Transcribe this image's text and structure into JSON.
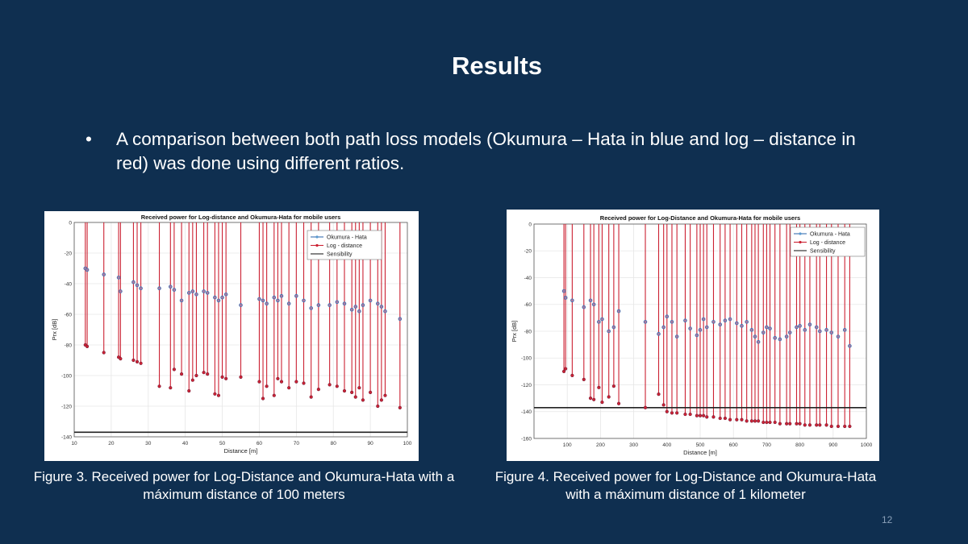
{
  "slide": {
    "title": "Results",
    "bullet": "A comparison between both path loss models (Okumura – Hata in blue and log – distance in red) was done using different ratios.",
    "bullet_symbol": "•",
    "page_number": "12",
    "background_color": "#0f2f50"
  },
  "figures": [
    {
      "caption": "Figure 3. Received power for Log-Distance and Okumura-Hata with a máximum  distance of 100 meters"
    },
    {
      "caption": "Figure 4. Received power for Log-Distance and Okumura-Hata  with a máximum  distance of 1 kilometer"
    }
  ],
  "chart_data": [
    {
      "type": "scatter",
      "title": "Received power for Log-distance and Okumura-Hata for mobile users",
      "xlabel": "Distance [m]",
      "ylabel": "Prx [dB]",
      "xlim": [
        10,
        100
      ],
      "ylim": [
        -140,
        0
      ],
      "xticks": [
        10,
        20,
        30,
        40,
        50,
        60,
        70,
        80,
        90,
        100
      ],
      "yticks": [
        0,
        -20,
        -40,
        -60,
        -80,
        -100,
        -120,
        -140
      ],
      "grid": true,
      "legend_position": "top-right",
      "colors": {
        "okumura": "#3a6fb0",
        "logdist": "#cc2233",
        "sens": "#222222"
      },
      "series": [
        {
          "name": "Okumura - Hata",
          "x": [
            13,
            13.5,
            18,
            22,
            22.5,
            26,
            27,
            28,
            33,
            36,
            37,
            39,
            41,
            42,
            43,
            45,
            46,
            48,
            49,
            50,
            51,
            55,
            60,
            61,
            62,
            64,
            65,
            66,
            68,
            70,
            72,
            74,
            76,
            79,
            81,
            83,
            85,
            86,
            87,
            88,
            90,
            92,
            93,
            94,
            98
          ],
          "y": [
            -30,
            -31,
            -34,
            -36,
            -45,
            -39,
            -41,
            -43,
            -43,
            -42,
            -44,
            -51,
            -46,
            -45,
            -47,
            -45,
            -46,
            -49,
            -51,
            -49,
            -47,
            -54,
            -50,
            -51,
            -53,
            -49,
            -51,
            -48,
            -53,
            -48,
            -51,
            -56,
            -54,
            -54,
            -52,
            -53,
            -57,
            -55,
            -58,
            -54,
            -51,
            -53,
            -55,
            -58,
            -63
          ]
        },
        {
          "name": "Log - distance",
          "x": [
            13,
            13.5,
            18,
            22,
            22.5,
            26,
            27,
            28,
            33,
            36,
            37,
            39,
            41,
            42,
            43,
            45,
            46,
            48,
            49,
            50,
            51,
            55,
            60,
            61,
            62,
            64,
            65,
            66,
            68,
            70,
            72,
            74,
            76,
            79,
            81,
            83,
            85,
            86,
            87,
            88,
            90,
            92,
            93,
            94,
            98
          ],
          "y": [
            -80,
            -81,
            -85,
            -88,
            -89,
            -90,
            -91,
            -92,
            -107,
            -108,
            -96,
            -99,
            -110,
            -103,
            -100,
            -98,
            -99,
            -112,
            -113,
            -101,
            -102,
            -101,
            -104,
            -115,
            -107,
            -113,
            -102,
            -104,
            -108,
            -104,
            -105,
            -114,
            -109,
            -106,
            -107,
            -110,
            -111,
            -114,
            -108,
            -116,
            -111,
            -120,
            -116,
            -113,
            -121
          ]
        },
        {
          "name": "Sensibility",
          "y": -137
        }
      ]
    },
    {
      "type": "scatter",
      "title": "Received power for Log-Distance and Okumura-Hata for mobile users",
      "xlabel": "Distance [m]",
      "ylabel": "Prx [dB]",
      "xlim": [
        0,
        1000
      ],
      "ylim": [
        -160,
        0
      ],
      "xticks": [
        100,
        200,
        300,
        400,
        500,
        600,
        700,
        800,
        900,
        1000
      ],
      "yticks": [
        0,
        -20,
        -40,
        -60,
        -80,
        -100,
        -120,
        -140,
        -160
      ],
      "grid": true,
      "legend_position": "top-right",
      "colors": {
        "okumura": "#3a6fb0",
        "logdist": "#cc2233",
        "sens": "#222222"
      },
      "series": [
        {
          "name": "Okumura - Hata",
          "x": [
            90,
            95,
            115,
            150,
            170,
            180,
            195,
            205,
            225,
            240,
            255,
            335,
            375,
            390,
            400,
            415,
            430,
            455,
            470,
            490,
            500,
            510,
            520,
            540,
            560,
            575,
            590,
            610,
            625,
            640,
            655,
            665,
            675,
            690,
            700,
            710,
            725,
            740,
            760,
            770,
            790,
            800,
            815,
            830,
            850,
            860,
            880,
            895,
            915,
            935,
            950
          ],
          "y": [
            -50,
            -55,
            -57,
            -62,
            -57,
            -60,
            -73,
            -71,
            -80,
            -77,
            -65,
            -73,
            -82,
            -77,
            -69,
            -73,
            -84,
            -72,
            -78,
            -83,
            -79,
            -71,
            -77,
            -73,
            -75,
            -72,
            -71,
            -74,
            -76,
            -73,
            -79,
            -84,
            -88,
            -81,
            -77,
            -78,
            -85,
            -86,
            -84,
            -81,
            -77,
            -76,
            -79,
            -75,
            -77,
            -80,
            -79,
            -81,
            -84,
            -79,
            -91
          ]
        },
        {
          "name": "Log - distance",
          "x": [
            90,
            95,
            115,
            150,
            170,
            180,
            195,
            205,
            225,
            240,
            255,
            335,
            375,
            390,
            400,
            415,
            430,
            455,
            470,
            490,
            500,
            510,
            520,
            540,
            560,
            575,
            590,
            610,
            625,
            640,
            655,
            665,
            675,
            690,
            700,
            710,
            725,
            740,
            760,
            770,
            790,
            800,
            815,
            830,
            850,
            860,
            880,
            895,
            915,
            935,
            950
          ],
          "y": [
            -110,
            -108,
            -113,
            -116,
            -130,
            -131,
            -122,
            -133,
            -129,
            -121,
            -134,
            -137,
            -127,
            -135,
            -140,
            -141,
            -141,
            -142,
            -142,
            -143,
            -143,
            -143,
            -144,
            -144,
            -145,
            -145,
            -146,
            -146,
            -146,
            -147,
            -147,
            -147,
            -147,
            -148,
            -148,
            -148,
            -148,
            -149,
            -149,
            -149,
            -149,
            -149,
            -150,
            -150,
            -150,
            -150,
            -150,
            -151,
            -151,
            -151,
            -151
          ]
        },
        {
          "name": "Sensibility",
          "y": -137
        }
      ]
    }
  ]
}
